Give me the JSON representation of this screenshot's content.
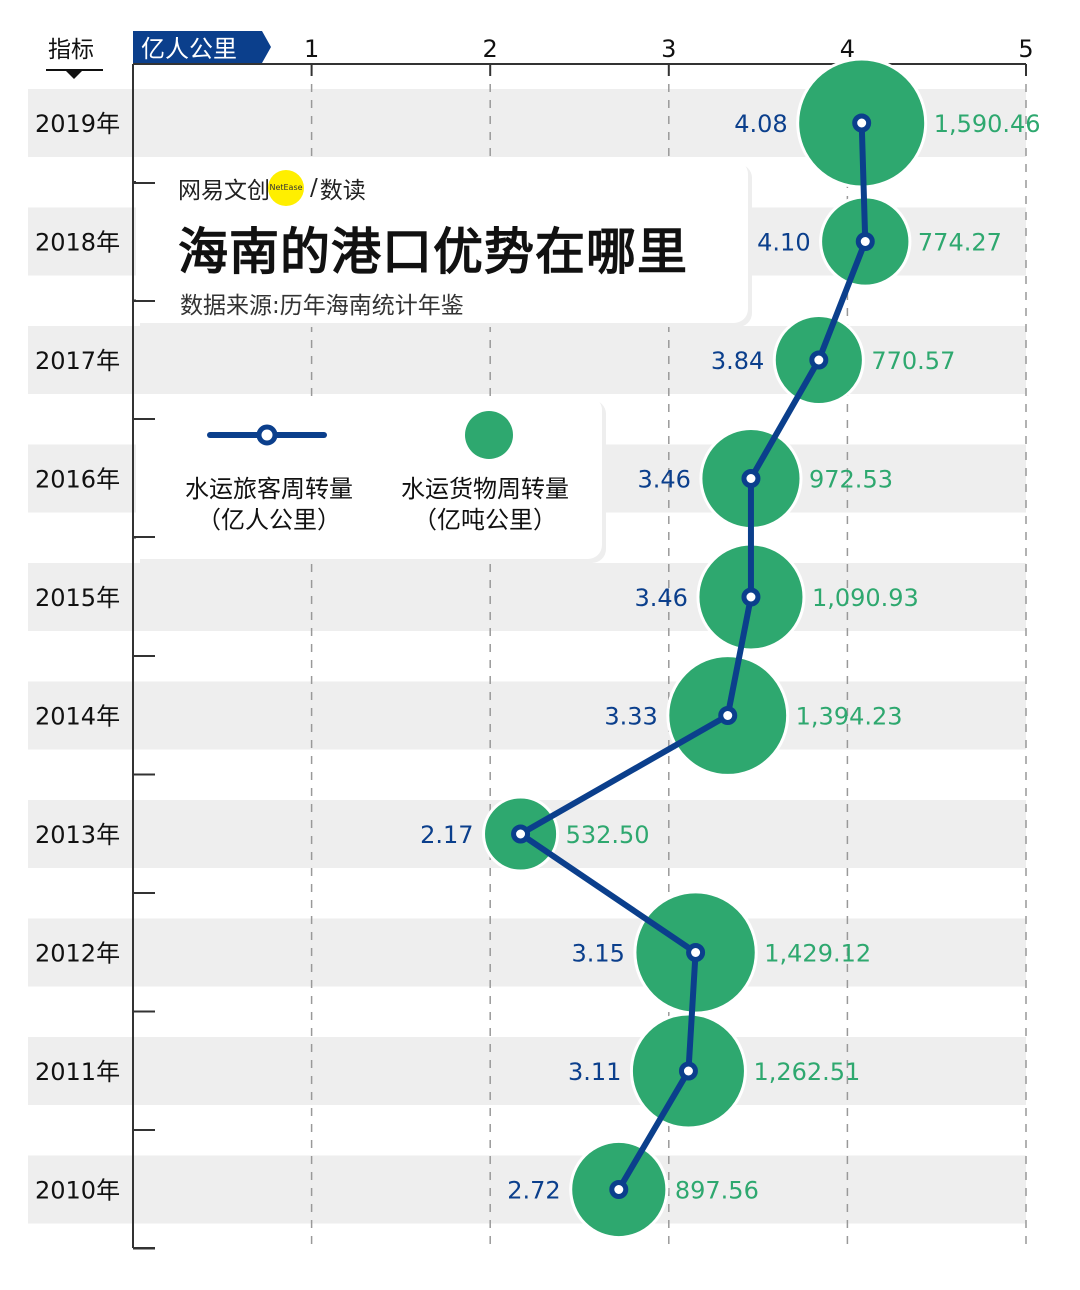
{
  "header": {
    "indicator_label": "指标",
    "unit_label": "亿人公里"
  },
  "brand": {
    "name": "网易文创",
    "badge": "NetEase",
    "separator": "/",
    "section": "数读"
  },
  "title": "海南的港口优势在哪里",
  "source": "数据来源:历年海南统计年鉴",
  "colors": {
    "passenger": "#0b3f8c",
    "cargo": "#2ea86f",
    "band": "#eeeeee"
  },
  "legend": {
    "passenger": {
      "line1": "水运旅客周转量",
      "line2": "（亿人公里）",
      "icon": "line-with-marker"
    },
    "cargo": {
      "line1": "水运货物周转量",
      "line2": "（亿吨公里）",
      "icon": "filled-circle"
    }
  },
  "chart_data": {
    "type": "line+bubble",
    "orientation": "horizontal",
    "xlim": [
      0,
      5
    ],
    "x_ticks": [
      "1",
      "2",
      "3",
      "4",
      "5"
    ],
    "grid": true,
    "categories": [
      "2019年",
      "2018年",
      "2017年",
      "2016年",
      "2015年",
      "2014年",
      "2013年",
      "2012年",
      "2011年",
      "2010年"
    ],
    "series": [
      {
        "name": "水运旅客周转量（亿人公里）",
        "type": "line",
        "values": [
          4.08,
          4.1,
          3.84,
          3.46,
          3.46,
          3.33,
          2.17,
          3.15,
          3.11,
          2.72
        ],
        "labels": [
          "4.08",
          "4.10",
          "3.84",
          "3.46",
          "3.46",
          "3.33",
          "2.17",
          "3.15",
          "3.11",
          "2.72"
        ]
      },
      {
        "name": "水运货物周转量（亿吨公里）",
        "type": "bubble",
        "values": [
          1590.46,
          774.27,
          770.57,
          972.53,
          1090.93,
          1394.23,
          532.5,
          1429.12,
          1262.51,
          897.56
        ],
        "labels": [
          "1,590.46",
          "774.27",
          "770.57",
          "972.53",
          "1,090.93",
          "1,394.23",
          "532.50",
          "1,429.12",
          "1,262.51",
          "897.56"
        ]
      }
    ]
  }
}
